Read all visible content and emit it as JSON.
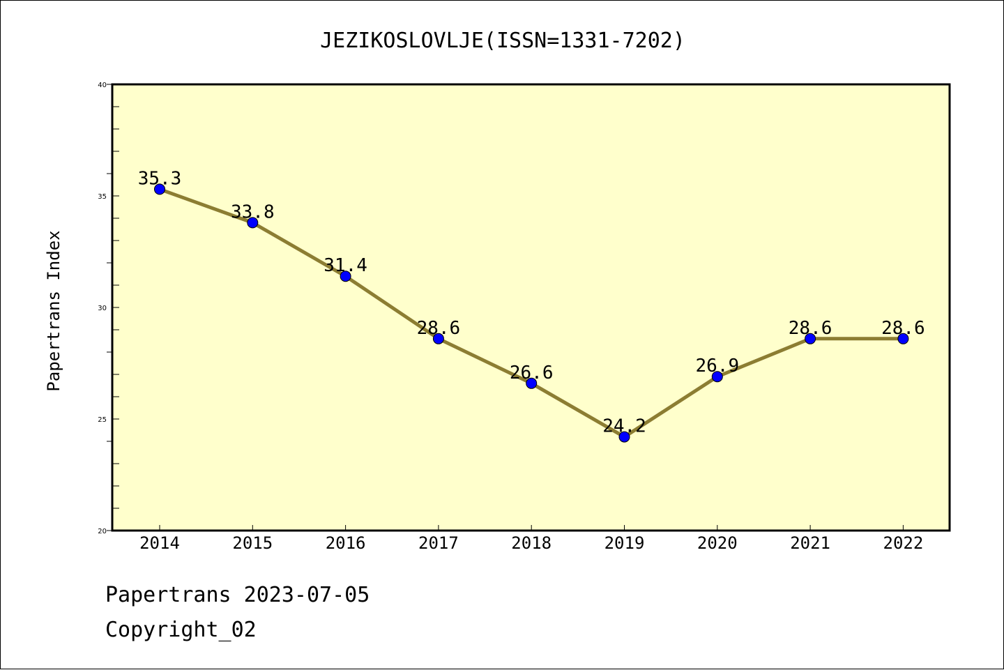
{
  "footer": {
    "line1": "Papertrans 2023-07-05",
    "line2": "Copyright_02"
  },
  "colors": {
    "plot_background": "#ffffcc",
    "line": "#8c7d32",
    "marker": "#0000ff"
  },
  "chart_data": {
    "type": "line",
    "title": "JEZIKOSLOVLJE(ISSN=1331-7202)",
    "xlabel": "",
    "ylabel": "Papertrans Index",
    "categories": [
      "2014",
      "2015",
      "2016",
      "2017",
      "2018",
      "2019",
      "2020",
      "2021",
      "2022"
    ],
    "values": [
      35.3,
      33.8,
      31.4,
      28.6,
      26.6,
      24.2,
      26.9,
      28.6,
      28.6
    ],
    "data_labels": [
      "35.3",
      "33.8",
      "31.4",
      "28.6",
      "26.6",
      "24.2",
      "26.9",
      "28.6",
      "28.6"
    ],
    "ylim": [
      20,
      40
    ],
    "yticks": [
      "20",
      "25",
      "30",
      "35",
      "40"
    ],
    "grid": false,
    "marker": "circle"
  }
}
